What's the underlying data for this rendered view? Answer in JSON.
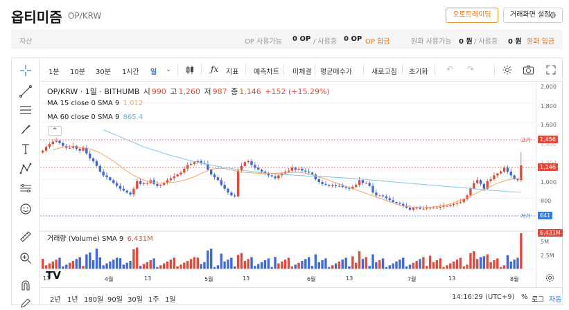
{
  "header": {
    "coin_name": "옵티미즘",
    "pair": "OP/KRW",
    "auto_trading_label": "오토트레이딩",
    "screen_settings_label": "거래화면 설정"
  },
  "asset_bar": {
    "label": "자산",
    "op_available_label": "OP 사용가능",
    "op_available_value": "0 OP",
    "op_in_use_label": "/ 사용중",
    "op_in_use_value": "0 OP",
    "op_deposit_label": "OP 입금",
    "krw_available_label": "원화 사용가능",
    "krw_available_value": "0 원",
    "krw_in_use_label": "/ 사용중",
    "krw_in_use_value": "0 원",
    "krw_deposit_label": "원화 입금"
  },
  "toolbar": {
    "intervals": [
      "1분",
      "10분",
      "30분",
      "1시간",
      "일"
    ],
    "indicator_label": "지표",
    "prediction_chart_label": "예측차트",
    "unsettled_label": "미체결",
    "avg_price_label": "평균매수가",
    "refresh_label": "새로고침",
    "reset_label": "초기화"
  },
  "legend": {
    "title": "OP/KRW · 1일 · BITHUMB",
    "open_label": "시",
    "open_value": "990",
    "high_label": "고",
    "high_value": "1,260",
    "low_label": "저",
    "low_value": "987",
    "close_label": "종",
    "close_value": "1,146",
    "change": "+152 (+15.29%)",
    "ma15_label": "MA 15 close 0 SMA 9",
    "ma15_value": "1,012",
    "ma60_label": "MA 60 close 0 SMA 9",
    "ma60_value": "865.4",
    "volume_label": "거래량 (Volume) SMA 9",
    "volume_value": "6.431M"
  },
  "price_axis": {
    "ticks": [
      "2,000",
      "1,800",
      "1,600",
      "1,400",
      "1,200",
      "1,000",
      "800"
    ],
    "high_tag_label": "고가",
    "high_tag_value": "1,456",
    "current_value": "1,146",
    "low_tag_label": "저가",
    "low_tag_value": "641",
    "volume_current": "6.431M",
    "volume_ticks": [
      "5M",
      "2.5M"
    ]
  },
  "time_axis": {
    "labels": [
      "13",
      "4월",
      "13",
      "5월",
      "13",
      "6월",
      "13",
      "7월",
      "13",
      "8월"
    ]
  },
  "bottom_bar": {
    "ranges": [
      "2년",
      "1년",
      "180일",
      "90일",
      "30일",
      "1주",
      "1일"
    ],
    "clock": "14:16:29 (UTC+9)",
    "percent_label": "%",
    "log_label": "로그",
    "auto_label": "자동"
  },
  "colors": {
    "up": "#e14b3c",
    "down": "#3f6ad8",
    "ma15": "#f4a35c",
    "ma60": "#7fc6e6",
    "accent": "#e8751a"
  },
  "chart_data": {
    "type": "candlestick",
    "title": "OP/KRW · 1일 · BITHUMB",
    "closes": [
      1300,
      1340,
      1370,
      1395,
      1405,
      1380,
      1350,
      1330,
      1330,
      1350,
      1320,
      1300,
      1330,
      1270,
      1220,
      1190,
      1140,
      1080,
      1040,
      1020,
      990,
      960,
      930,
      900,
      880,
      860,
      840,
      900,
      980,
      950,
      960,
      960,
      990,
      950,
      930,
      940,
      960,
      990,
      1010,
      1030,
      1050,
      1070,
      1110,
      1150,
      1160,
      1180,
      1190,
      1170,
      1160,
      1100,
      1050,
      1020,
      990,
      940,
      900,
      860,
      830,
      820,
      1090,
      1140,
      1180,
      1190,
      1150,
      1120,
      1100,
      1080,
      1060,
      1040,
      1030,
      1010,
      1040,
      1060,
      1080,
      1090,
      1120,
      1100,
      1110,
      1090,
      1080,
      1070,
      1050,
      1000,
      970,
      950,
      940,
      930,
      940,
      930,
      930,
      920,
      910,
      900,
      920,
      940,
      990,
      960,
      960,
      930,
      860,
      830,
      830,
      820,
      800,
      780,
      760,
      750,
      740,
      720,
      700,
      680,
      700,
      700,
      690,
      690,
      700,
      700,
      700,
      700,
      710,
      720,
      720,
      730,
      740,
      750,
      760,
      790,
      830,
      900,
      960,
      990,
      950,
      900,
      980,
      1000,
      1040,
      1060,
      1080,
      1120,
      1080,
      1040,
      1000,
      990,
      1146
    ],
    "ma15": [
      1310,
      1320,
      1335,
      1340,
      1345,
      1343,
      1340,
      1335,
      1330,
      1320,
      1305,
      1290,
      1270,
      1245,
      1220,
      1190,
      1160,
      1125,
      1095,
      1065,
      1040,
      1020,
      1000,
      985,
      975,
      965,
      960,
      960,
      962,
      965,
      968,
      975,
      985,
      995,
      1010,
      1025,
      1045,
      1065,
      1085,
      1100,
      1110,
      1115,
      1115,
      1110,
      1100,
      1090,
      1080,
      1075,
      1070,
      1068,
      1065,
      1063,
      1060,
      1058,
      1060,
      1062,
      1065,
      1068,
      1070,
      1072,
      1073,
      1072,
      1068,
      1060,
      1050,
      1038,
      1025,
      1010,
      995,
      980,
      965,
      950,
      935,
      920,
      905,
      890,
      875,
      860,
      845,
      830,
      815,
      800,
      785,
      770,
      755,
      740,
      728,
      718,
      712,
      708,
      706,
      705,
      704,
      705,
      708,
      712,
      718,
      726,
      735,
      748,
      762,
      778,
      795,
      815,
      835,
      855,
      875,
      895,
      915,
      935,
      955,
      970,
      985,
      995,
      1005,
      1010,
      1012
    ],
    "ma60": [
      1520,
      1500,
      1480,
      1460,
      1440,
      1420,
      1400,
      1380,
      1360,
      1340,
      1325,
      1310,
      1295,
      1280,
      1265,
      1250,
      1238,
      1225,
      1212,
      1200,
      1188,
      1178,
      1168,
      1158,
      1148,
      1140,
      1132,
      1124,
      1116,
      1108,
      1100,
      1094,
      1088,
      1082,
      1076,
      1070,
      1066,
      1062,
      1058,
      1054,
      1050,
      1047,
      1044,
      1041,
      1038,
      1035,
      1033,
      1031,
      1029,
      1027,
      1025,
      1022,
      1019,
      1016,
      1013,
      1010,
      1006,
      1002,
      998,
      994,
      990,
      986,
      982,
      978,
      974,
      970,
      966,
      962,
      958,
      954,
      950,
      946,
      942,
      938,
      934,
      930,
      926,
      922,
      918,
      914,
      910,
      906,
      902,
      898,
      894,
      890,
      886,
      882,
      878,
      874,
      870,
      868,
      866,
      865.4
    ],
    "volume_last": 6431000
  }
}
